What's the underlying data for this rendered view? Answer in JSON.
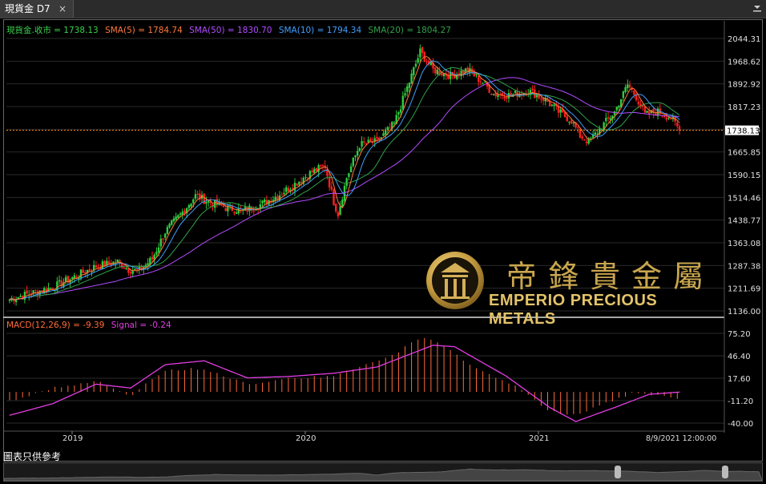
{
  "tab": {
    "title": "現貨金 D7",
    "close_symbol": "×"
  },
  "price_legend": [
    {
      "text": "現貨金.收市 = 1738.13",
      "color": "#38d24a"
    },
    {
      "text": "SMA(5) = 1784.74",
      "color": "#ff7a3c"
    },
    {
      "text": "SMA(50) = 1830.70",
      "color": "#b24bff"
    },
    {
      "text": "SMA(10) = 1794.34",
      "color": "#3ea0ff"
    },
    {
      "text": "SMA(20) = 1804.27",
      "color": "#2fa14a"
    }
  ],
  "macd_legend": [
    {
      "text": "MACD(12,26,9) = -9.39",
      "color": "#ff6a3a"
    },
    {
      "text": "Signal = -0.24",
      "color": "#e23de2"
    }
  ],
  "price_axis": {
    "ticks": [
      "2044.31",
      "1968.62",
      "1892.92",
      "1817.23",
      "1741.54",
      "1665.85",
      "1590.15",
      "1514.46",
      "1438.77",
      "1363.08",
      "1287.38",
      "1211.69",
      "1136.00"
    ],
    "current": "1738.13"
  },
  "macd_axis": {
    "ticks": [
      "75.20",
      "46.40",
      "17.60",
      "-11.20",
      "-40.00"
    ]
  },
  "x_axis": {
    "labels": [
      "2019",
      "2020",
      "2021"
    ],
    "date_label": "8/9/2021 12:00:00"
  },
  "footer_note": "圖表只供參考",
  "logo": {
    "cn": "帝鋒貴金屬",
    "en": "EMPERIO PRECIOUS METALS"
  },
  "colors": {
    "bull": "#2ecc40",
    "bear": "#ff2020",
    "grid": "#2a2a2a",
    "current_line": "#ff8c1a"
  },
  "chart_data": [
    {
      "type": "candlestick",
      "title": "現貨金 D7",
      "ylim": [
        1136.0,
        2044.31
      ],
      "x_labels": [
        "2019",
        "2020",
        "2021"
      ],
      "series": [
        {
          "name": "現貨金.收市",
          "last": 1738.13
        },
        {
          "name": "SMA(5)",
          "last": 1784.74
        },
        {
          "name": "SMA(10)",
          "last": 1794.34
        },
        {
          "name": "SMA(20)",
          "last": 1804.27
        },
        {
          "name": "SMA(50)",
          "last": 1830.7
        }
      ],
      "close_anchors": [
        [
          0,
          1175
        ],
        [
          10,
          1195
        ],
        [
          20,
          1215
        ],
        [
          30,
          1250
        ],
        [
          40,
          1285
        ],
        [
          50,
          1300
        ],
        [
          55,
          1275
        ],
        [
          60,
          1270
        ],
        [
          66,
          1310
        ],
        [
          72,
          1400
        ],
        [
          80,
          1465
        ],
        [
          86,
          1520
        ],
        [
          92,
          1500
        ],
        [
          100,
          1480
        ],
        [
          108,
          1470
        ],
        [
          116,
          1490
        ],
        [
          124,
          1520
        ],
        [
          132,
          1560
        ],
        [
          140,
          1600
        ],
        [
          146,
          1620
        ],
        [
          150,
          1500
        ],
        [
          152,
          1460
        ],
        [
          156,
          1580
        ],
        [
          162,
          1690
        ],
        [
          170,
          1700
        ],
        [
          178,
          1760
        ],
        [
          184,
          1880
        ],
        [
          188,
          1960
        ],
        [
          190,
          2000
        ],
        [
          196,
          1940
        ],
        [
          204,
          1920
        ],
        [
          212,
          1940
        ],
        [
          220,
          1890
        ],
        [
          224,
          1860
        ],
        [
          232,
          1855
        ],
        [
          240,
          1870
        ],
        [
          248,
          1840
        ],
        [
          254,
          1800
        ],
        [
          260,
          1770
        ],
        [
          264,
          1720
        ],
        [
          268,
          1700
        ],
        [
          274,
          1750
        ],
        [
          280,
          1800
        ],
        [
          284,
          1860
        ],
        [
          286,
          1890
        ],
        [
          290,
          1850
        ],
        [
          294,
          1790
        ],
        [
          300,
          1800
        ],
        [
          306,
          1780
        ],
        [
          310,
          1738
        ]
      ]
    },
    {
      "type": "bar",
      "title": "MACD(12,26,9)",
      "ylim": [
        -40.0,
        75.2
      ],
      "series": [
        {
          "name": "MACD(12,26,9)",
          "last": -9.39
        },
        {
          "name": "Signal",
          "last": -0.24
        }
      ],
      "macd_anchors": [
        [
          0,
          -12
        ],
        [
          20,
          5
        ],
        [
          40,
          14
        ],
        [
          56,
          -5
        ],
        [
          72,
          28
        ],
        [
          90,
          30
        ],
        [
          110,
          10
        ],
        [
          130,
          18
        ],
        [
          150,
          20
        ],
        [
          160,
          30
        ],
        [
          176,
          45
        ],
        [
          190,
          70
        ],
        [
          196,
          68
        ],
        [
          216,
          30
        ],
        [
          236,
          5
        ],
        [
          250,
          -25
        ],
        [
          262,
          -30
        ],
        [
          280,
          -10
        ],
        [
          290,
          0
        ],
        [
          300,
          -5
        ],
        [
          310,
          -9.39
        ]
      ],
      "signal_anchors": [
        [
          0,
          -30
        ],
        [
          20,
          -15
        ],
        [
          40,
          10
        ],
        [
          56,
          5
        ],
        [
          72,
          35
        ],
        [
          90,
          40
        ],
        [
          110,
          18
        ],
        [
          130,
          20
        ],
        [
          150,
          24
        ],
        [
          170,
          32
        ],
        [
          196,
          60
        ],
        [
          206,
          58
        ],
        [
          230,
          20
        ],
        [
          250,
          -20
        ],
        [
          262,
          -38
        ],
        [
          280,
          -20
        ],
        [
          296,
          -3
        ],
        [
          310,
          -0.24
        ]
      ]
    }
  ]
}
